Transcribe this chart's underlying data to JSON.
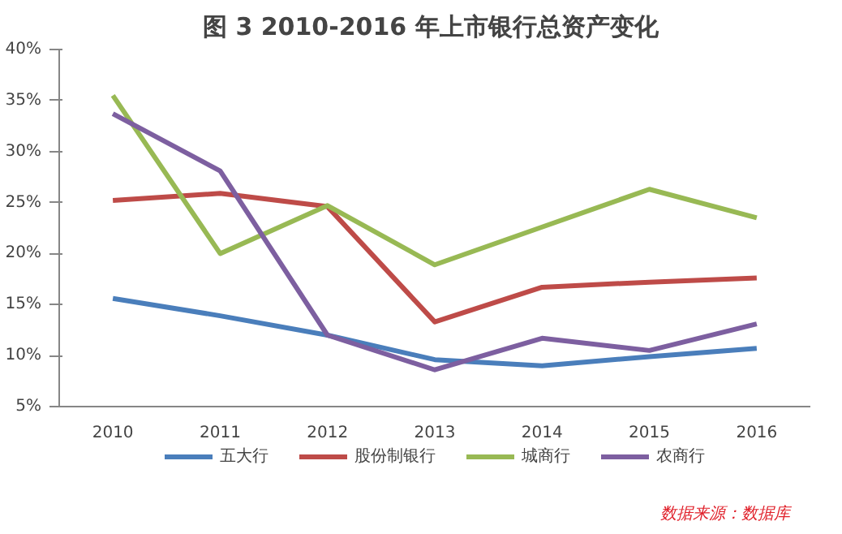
{
  "chart_data": {
    "type": "line",
    "title": "图 3  2010-2016 年上市银行总资产变化",
    "categories": [
      "2010",
      "2011",
      "2012",
      "2013",
      "2014",
      "2015",
      "2016"
    ],
    "series": [
      {
        "name": "五大行",
        "color": "#4a7ebb",
        "values": [
          15.6,
          13.9,
          12.0,
          9.6,
          9.0,
          9.9,
          10.7
        ]
      },
      {
        "name": "股份制银行",
        "color": "#be4b48",
        "values": [
          25.2,
          25.9,
          24.6,
          13.3,
          16.7,
          17.2,
          17.6
        ]
      },
      {
        "name": "城商行",
        "color": "#98b954",
        "values": [
          35.5,
          20.0,
          24.7,
          18.9,
          22.6,
          26.3,
          23.5
        ]
      },
      {
        "name": "农商行",
        "color": "#7d5fa0",
        "values": [
          33.7,
          28.1,
          12.0,
          8.6,
          11.7,
          10.5,
          13.1
        ]
      }
    ],
    "ylim": [
      5,
      40
    ],
    "yticks": [
      {
        "value": 5,
        "label": "5%"
      },
      {
        "value": 10,
        "label": "10%"
      },
      {
        "value": 15,
        "label": "15%"
      },
      {
        "value": 20,
        "label": "20%"
      },
      {
        "value": 25,
        "label": "25%"
      },
      {
        "value": 30,
        "label": "30%"
      },
      {
        "value": 35,
        "label": "35%"
      },
      {
        "value": 40,
        "label": "40%"
      }
    ],
    "grid": false,
    "legend": "bottom",
    "marker": "none",
    "line_style": "solid",
    "annotations": [
      "数据来源：数据库"
    ]
  }
}
